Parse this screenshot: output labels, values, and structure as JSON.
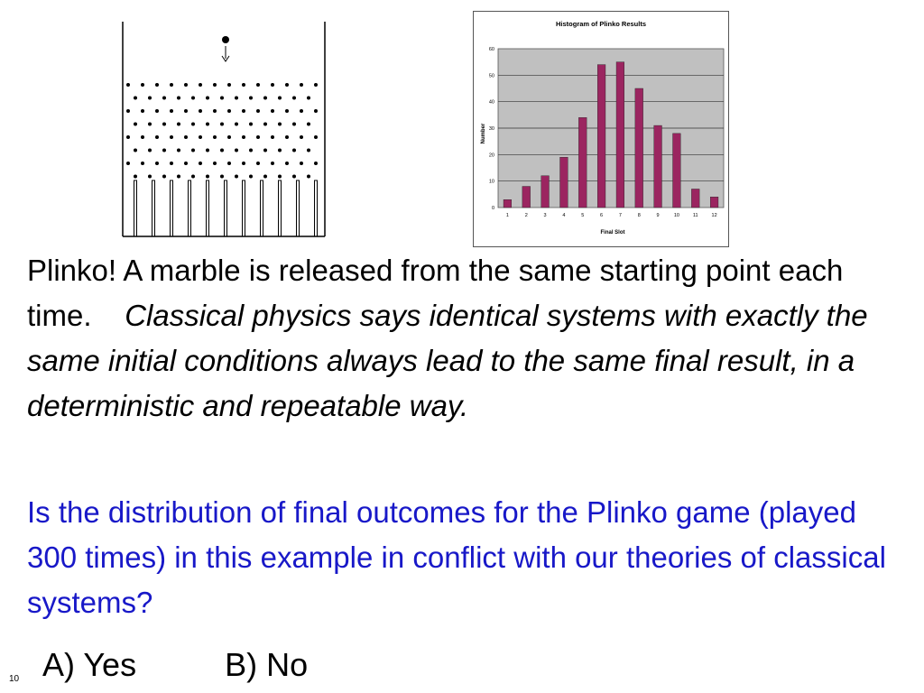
{
  "statement": {
    "plain": "Plinko! A marble is released from the same starting point each time.",
    "italic": "Classical physics says identical systems with exactly the same initial conditions always lead to the same final result, in a deterministic and repeatable way."
  },
  "question": "Is the distribution of final outcomes for the Plinko game (played 300 times) in this example in conflict with our theories of classical systems?",
  "answers": {
    "a": "A) Yes",
    "b": "B) No"
  },
  "slide_number": "10",
  "chart_data": {
    "type": "bar",
    "title": "Histogram of Plinko Results",
    "xlabel": "Final Slot",
    "ylabel": "Number",
    "categories": [
      "1",
      "2",
      "3",
      "4",
      "5",
      "6",
      "7",
      "8",
      "9",
      "10",
      "11",
      "12"
    ],
    "values": [
      3,
      8,
      12,
      19,
      34,
      54,
      55,
      45,
      31,
      28,
      7,
      4
    ],
    "ylim": [
      0,
      60
    ],
    "yticks": [
      0,
      10,
      20,
      30,
      40,
      50,
      60
    ],
    "grid": true,
    "legend": "none",
    "colors": {
      "bar": "#9b2560",
      "plot_bg": "#c0c0c0",
      "frame": "#555555"
    }
  }
}
